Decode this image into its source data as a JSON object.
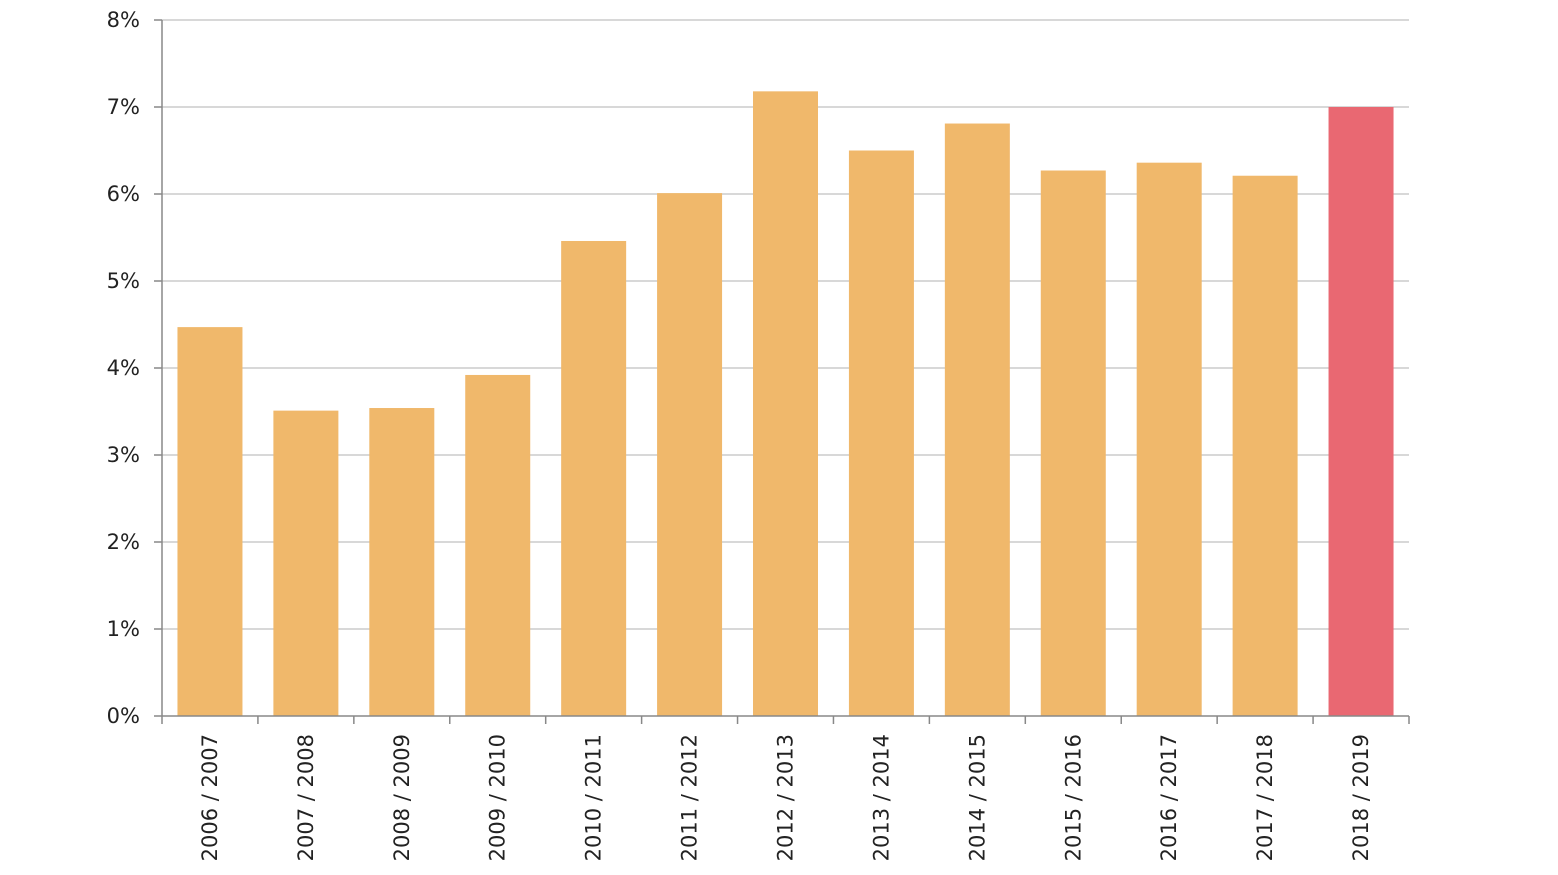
{
  "chart_data": {
    "type": "bar",
    "title": "",
    "xlabel": "",
    "ylabel": "",
    "categories": [
      "2006 / 2007",
      "2007 / 2008",
      "2008 / 2009",
      "2009 / 2010",
      "2010 / 2011",
      "2011 / 2012",
      "2012 / 2013",
      "2013 / 2014",
      "2014 / 2015",
      "2015 / 2016",
      "2016 / 2017",
      "2017 / 2018",
      "2018 / 2019"
    ],
    "values": [
      4.47,
      3.51,
      3.54,
      3.92,
      5.46,
      6.01,
      7.18,
      6.5,
      6.81,
      6.27,
      6.36,
      6.21,
      7.0
    ],
    "highlight_index": 12,
    "ylim": [
      0,
      8
    ],
    "yticks": [
      0,
      1,
      2,
      3,
      4,
      5,
      6,
      7,
      8
    ],
    "ytick_labels": [
      "0%",
      "1%",
      "2%",
      "3%",
      "4%",
      "5%",
      "6%",
      "7%",
      "8%"
    ],
    "grid": true,
    "legend": "none",
    "colors": {
      "bar": "#f0b86b",
      "highlight": "#e96872",
      "grid": "#cccccc",
      "axis": "#888888"
    }
  }
}
